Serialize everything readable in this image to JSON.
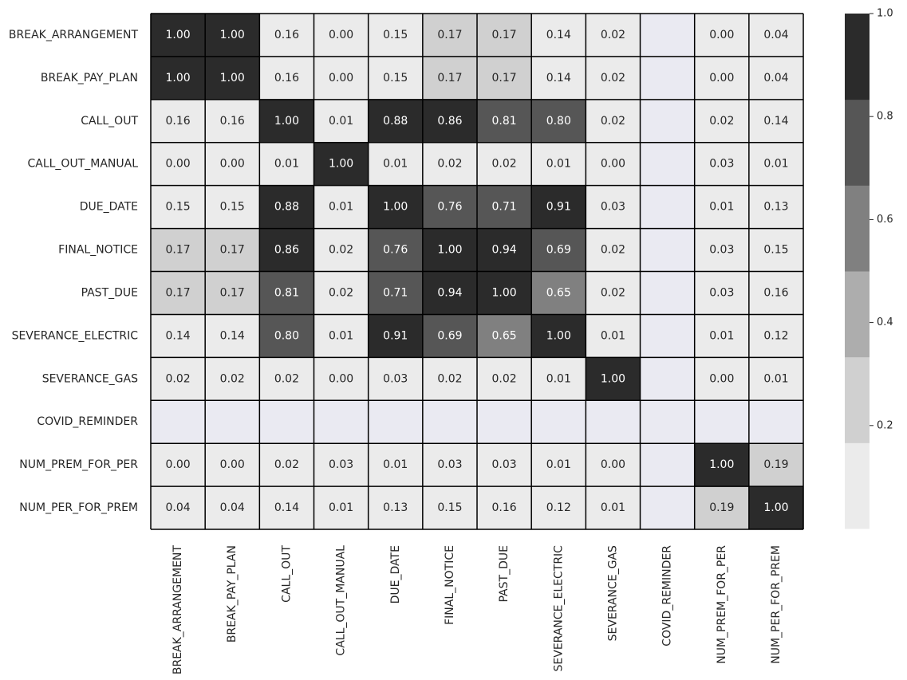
{
  "chart_data": {
    "type": "heatmap",
    "title": "",
    "xlabel": "",
    "ylabel": "",
    "rows": [
      "BREAK_ARRANGEMENT",
      "BREAK_PAY_PLAN",
      "CALL_OUT",
      "CALL_OUT_MANUAL",
      "DUE_DATE",
      "FINAL_NOTICE",
      "PAST_DUE",
      "SEVERANCE_ELECTRIC",
      "SEVERANCE_GAS",
      "COVID_REMINDER",
      "NUM_PREM_FOR_PER",
      "NUM_PER_FOR_PREM"
    ],
    "columns": [
      "BREAK_ARRANGEMENT",
      "BREAK_PAY_PLAN",
      "CALL_OUT",
      "CALL_OUT_MANUAL",
      "DUE_DATE",
      "FINAL_NOTICE",
      "PAST_DUE",
      "SEVERANCE_ELECTRIC",
      "SEVERANCE_GAS",
      "COVID_REMINDER",
      "NUM_PREM_FOR_PER",
      "NUM_PER_FOR_PREM"
    ],
    "values": [
      [
        1.0,
        1.0,
        0.16,
        0.0,
        0.15,
        0.17,
        0.17,
        0.14,
        0.02,
        null,
        0.0,
        0.04
      ],
      [
        1.0,
        1.0,
        0.16,
        0.0,
        0.15,
        0.17,
        0.17,
        0.14,
        0.02,
        null,
        0.0,
        0.04
      ],
      [
        0.16,
        0.16,
        1.0,
        0.01,
        0.88,
        0.86,
        0.81,
        0.8,
        0.02,
        null,
        0.02,
        0.14
      ],
      [
        0.0,
        0.0,
        0.01,
        1.0,
        0.01,
        0.02,
        0.02,
        0.01,
        0.0,
        null,
        0.03,
        0.01
      ],
      [
        0.15,
        0.15,
        0.88,
        0.01,
        1.0,
        0.76,
        0.71,
        0.91,
        0.03,
        null,
        0.01,
        0.13
      ],
      [
        0.17,
        0.17,
        0.86,
        0.02,
        0.76,
        1.0,
        0.94,
        0.69,
        0.02,
        null,
        0.03,
        0.15
      ],
      [
        0.17,
        0.17,
        0.81,
        0.02,
        0.71,
        0.94,
        1.0,
        0.65,
        0.02,
        null,
        0.03,
        0.16
      ],
      [
        0.14,
        0.14,
        0.8,
        0.01,
        0.91,
        0.69,
        0.65,
        1.0,
        0.01,
        null,
        0.01,
        0.12
      ],
      [
        0.02,
        0.02,
        0.02,
        0.0,
        0.03,
        0.02,
        0.02,
        0.01,
        1.0,
        null,
        0.0,
        0.01
      ],
      [
        null,
        null,
        null,
        null,
        null,
        null,
        null,
        null,
        null,
        null,
        null,
        null
      ],
      [
        0.0,
        0.0,
        0.02,
        0.03,
        0.01,
        0.03,
        0.03,
        0.01,
        0.0,
        null,
        1.0,
        0.19
      ],
      [
        0.04,
        0.04,
        0.14,
        0.01,
        0.13,
        0.15,
        0.16,
        0.12,
        0.01,
        null,
        0.19,
        1.0
      ]
    ],
    "value_format": "2 decimals",
    "colorbar": {
      "range": [
        0.0,
        1.0
      ],
      "ticks": [
        "0.2",
        "0.4",
        "0.6",
        "0.8",
        "1.0"
      ],
      "levels": [
        "#ebebeb",
        "#d0d0d0",
        "#adadad",
        "#808080",
        "#565656",
        "#2b2b2b"
      ]
    },
    "missing_color": "#eaeaf2",
    "cell_border_color": "#000000",
    "light_text_color": "#ffffff",
    "dark_text_color": "#262626",
    "grid": false,
    "legend": "colorbar-right"
  }
}
